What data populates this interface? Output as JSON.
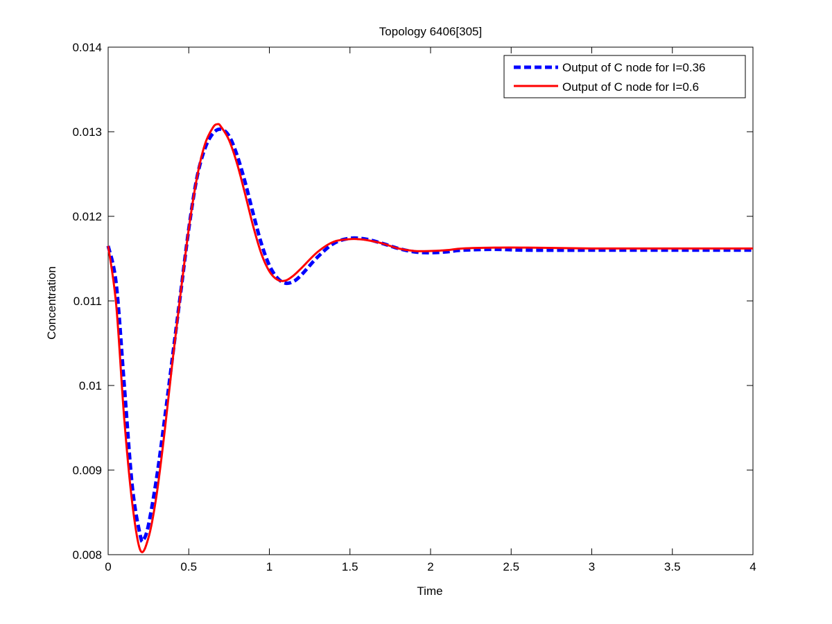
{
  "chart_data": {
    "type": "line",
    "title": "Topology 6406[305]",
    "xlabel": "Time",
    "ylabel": "Concentration",
    "xlim": [
      0,
      4
    ],
    "ylim": [
      0.008,
      0.014
    ],
    "xticks": [
      0,
      0.5,
      1,
      1.5,
      2,
      2.5,
      3,
      3.5,
      4
    ],
    "xtick_labels": [
      "0",
      "0.5",
      "1",
      "1.5",
      "2",
      "2.5",
      "3",
      "3.5",
      "4"
    ],
    "yticks": [
      0.008,
      0.009,
      0.01,
      0.011,
      0.012,
      0.013,
      0.014
    ],
    "ytick_labels": [
      "0.008",
      "0.009",
      "0.01",
      "0.011",
      "0.012",
      "0.013",
      "0.014"
    ],
    "grid": false,
    "legend_position": "top-right",
    "series": [
      {
        "name": "Output of C node for I=0.36",
        "color": "#0000ff",
        "style": "dashed",
        "x": [
          0,
          0.05,
          0.1,
          0.15,
          0.2,
          0.22,
          0.25,
          0.3,
          0.35,
          0.4,
          0.45,
          0.5,
          0.55,
          0.6,
          0.65,
          0.7,
          0.75,
          0.8,
          0.85,
          0.9,
          0.95,
          1.0,
          1.05,
          1.1,
          1.15,
          1.2,
          1.3,
          1.4,
          1.5,
          1.6,
          1.7,
          1.8,
          1.9,
          2.0,
          2.1,
          2.2,
          2.4,
          2.6,
          3.0,
          3.5,
          4.0
        ],
        "y": [
          0.01165,
          0.0112,
          0.01,
          0.0088,
          0.00822,
          0.00818,
          0.00835,
          0.0089,
          0.0096,
          0.01035,
          0.0111,
          0.01185,
          0.01245,
          0.0128,
          0.01298,
          0.01303,
          0.01295,
          0.01272,
          0.0124,
          0.01203,
          0.01168,
          0.01142,
          0.01127,
          0.01121,
          0.01123,
          0.01131,
          0.01152,
          0.01168,
          0.01174,
          0.01173,
          0.01168,
          0.01162,
          0.01158,
          0.01157,
          0.01158,
          0.0116,
          0.01161,
          0.0116,
          0.0116,
          0.0116,
          0.0116
        ]
      },
      {
        "name": "Output of C node for I=0.6",
        "color": "#ff0000",
        "style": "solid",
        "x": [
          0,
          0.05,
          0.1,
          0.15,
          0.2,
          0.25,
          0.3,
          0.35,
          0.4,
          0.45,
          0.5,
          0.55,
          0.6,
          0.65,
          0.68,
          0.7,
          0.75,
          0.8,
          0.85,
          0.9,
          0.95,
          1.0,
          1.05,
          1.1,
          1.15,
          1.2,
          1.3,
          1.4,
          1.5,
          1.55,
          1.6,
          1.7,
          1.8,
          1.9,
          2.0,
          2.1,
          2.2,
          2.4,
          2.6,
          3.0,
          3.5,
          4.0
        ],
        "y": [
          0.01165,
          0.01095,
          0.0096,
          0.0086,
          0.00805,
          0.0082,
          0.0087,
          0.00945,
          0.0103,
          0.0111,
          0.01185,
          0.01245,
          0.01285,
          0.01305,
          0.01309,
          0.01306,
          0.0129,
          0.01262,
          0.01226,
          0.01188,
          0.01156,
          0.01135,
          0.01125,
          0.01124,
          0.0113,
          0.01139,
          0.01158,
          0.0117,
          0.01173,
          0.01173,
          0.01172,
          0.01168,
          0.01162,
          0.01159,
          0.01159,
          0.0116,
          0.01162,
          0.01163,
          0.01163,
          0.01162,
          0.01162,
          0.01162
        ]
      }
    ]
  }
}
